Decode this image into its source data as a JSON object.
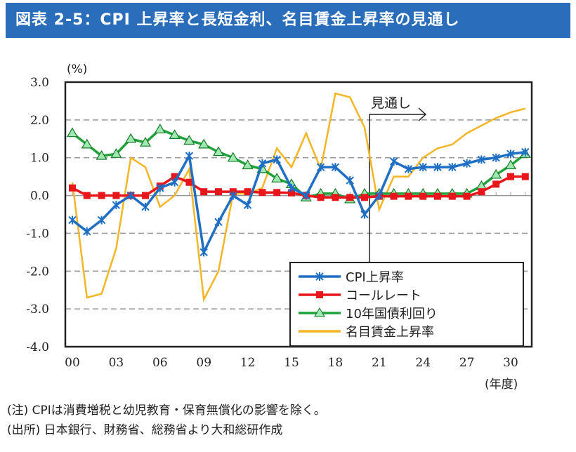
{
  "title": "図表 2-5：CPI 上昇率と長短金利、名目賃金上昇率の見通し",
  "notes": [
    "(注) CPIは消費増税と幼児教育・保育無償化の影響を除く。",
    "(出所) 日本銀行、財務省、総務省より大和総研作成"
  ],
  "chart_data": {
    "type": "line",
    "ylabel": "(%)",
    "xlabel": "(年度)",
    "ylim": [
      -4.0,
      3.0
    ],
    "yticks": [
      "3.0",
      "2.0",
      "1.0",
      "0.0",
      "-1.0",
      "-2.0",
      "-3.0",
      "-4.0"
    ],
    "xticks": [
      "00",
      "03",
      "06",
      "09",
      "12",
      "15",
      "18",
      "21",
      "24",
      "27",
      "30"
    ],
    "grid": "horizontal dashed",
    "legend_placement": "bottom-right",
    "annotation": "見通し",
    "x": [
      "00",
      "01",
      "02",
      "03",
      "04",
      "05",
      "06",
      "07",
      "08",
      "09",
      "10",
      "11",
      "12",
      "13",
      "14",
      "15",
      "16",
      "17",
      "18",
      "19",
      "20",
      "21",
      "22",
      "23",
      "24",
      "25",
      "26",
      "27",
      "28",
      "29",
      "30",
      "31"
    ],
    "series": [
      {
        "name": "CPI上昇率",
        "color": "#1f6fc5",
        "marker": "asterisk",
        "values": [
          -0.65,
          -0.95,
          -0.65,
          -0.25,
          0.0,
          -0.3,
          0.2,
          0.35,
          1.05,
          -1.5,
          -0.7,
          0.0,
          -0.25,
          0.85,
          0.95,
          0.2,
          0.0,
          0.75,
          0.75,
          0.4,
          -0.5,
          0.0,
          0.9,
          0.7,
          0.75,
          0.75,
          0.75,
          0.85,
          0.95,
          1.0,
          1.1,
          1.15
        ]
      },
      {
        "name": "コールレート",
        "color": "#e8151b",
        "marker": "square",
        "values": [
          0.2,
          0.0,
          0.0,
          0.0,
          0.0,
          0.0,
          0.25,
          0.5,
          0.35,
          0.1,
          0.1,
          0.1,
          0.1,
          0.08,
          0.08,
          0.07,
          0.0,
          -0.05,
          -0.05,
          -0.05,
          -0.05,
          -0.02,
          -0.02,
          -0.02,
          -0.02,
          -0.02,
          -0.02,
          -0.02,
          0.1,
          0.3,
          0.5,
          0.5
        ]
      },
      {
        "name": "10年国債利回り",
        "color": "#1fa23a",
        "marker": "triangle",
        "values": [
          1.65,
          1.35,
          1.05,
          1.1,
          1.5,
          1.4,
          1.75,
          1.6,
          1.45,
          1.35,
          1.15,
          1.0,
          0.8,
          0.7,
          0.45,
          0.3,
          -0.05,
          0.05,
          0.05,
          -0.1,
          0.05,
          0.05,
          0.05,
          0.05,
          0.05,
          0.05,
          0.05,
          0.05,
          0.25,
          0.55,
          0.8,
          1.1
        ]
      },
      {
        "name": "名目賃金上昇率",
        "color": "#f4b526",
        "marker": "none",
        "values": [
          0.35,
          -2.7,
          -2.6,
          -1.4,
          1.0,
          0.75,
          -0.3,
          0.0,
          0.7,
          -2.75,
          -2.0,
          0.05,
          0.05,
          0.2,
          1.25,
          0.75,
          1.65,
          0.7,
          2.7,
          2.6,
          1.8,
          -0.37,
          0.5,
          0.5,
          1.0,
          1.25,
          1.35,
          1.65,
          1.85,
          2.05,
          2.2,
          2.3
        ]
      }
    ]
  }
}
